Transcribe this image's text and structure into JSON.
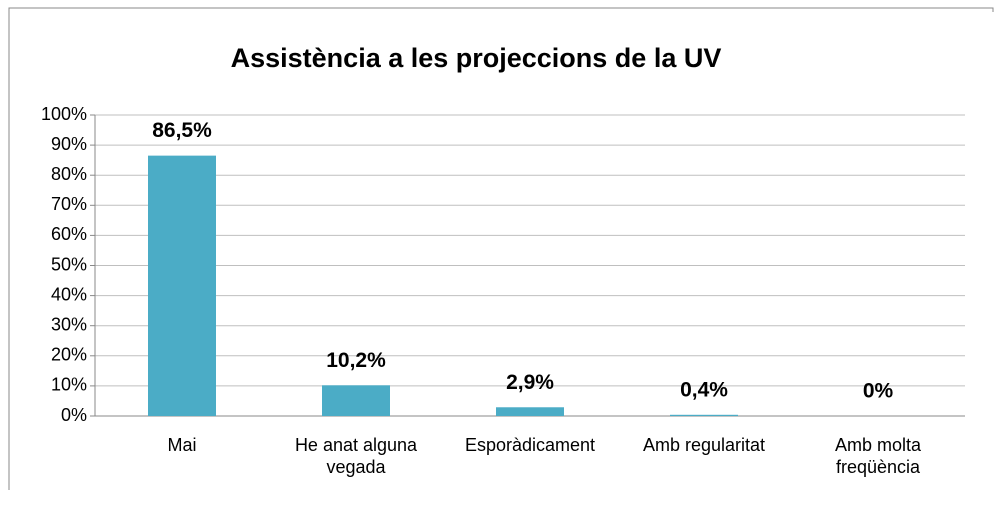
{
  "chart_data": {
    "type": "bar",
    "title": "Assistència a les projeccions de la UV",
    "categories": [
      "Mai",
      "He anat alguna vegada",
      "Esporàdicament",
      "Amb regularitat",
      "Amb molta freqüència"
    ],
    "values": [
      86.5,
      10.2,
      2.9,
      0.4,
      0
    ],
    "value_labels": [
      "86,5%",
      "10,2%",
      "2,9%",
      "0,4%",
      "0%"
    ],
    "color": "#4bacc6",
    "ylim": [
      0,
      100
    ],
    "yticks": [
      {
        "value": 0,
        "label": "0%"
      },
      {
        "value": 10,
        "label": "10%"
      },
      {
        "value": 20,
        "label": "20%"
      },
      {
        "value": 30,
        "label": "30%"
      },
      {
        "value": 40,
        "label": "40%"
      },
      {
        "value": 50,
        "label": "50%"
      },
      {
        "value": 60,
        "label": "60%"
      },
      {
        "value": 70,
        "label": "70%"
      },
      {
        "value": 80,
        "label": "80%"
      },
      {
        "value": 90,
        "label": "90%"
      },
      {
        "value": 100,
        "label": "100%"
      }
    ],
    "grid": true
  }
}
